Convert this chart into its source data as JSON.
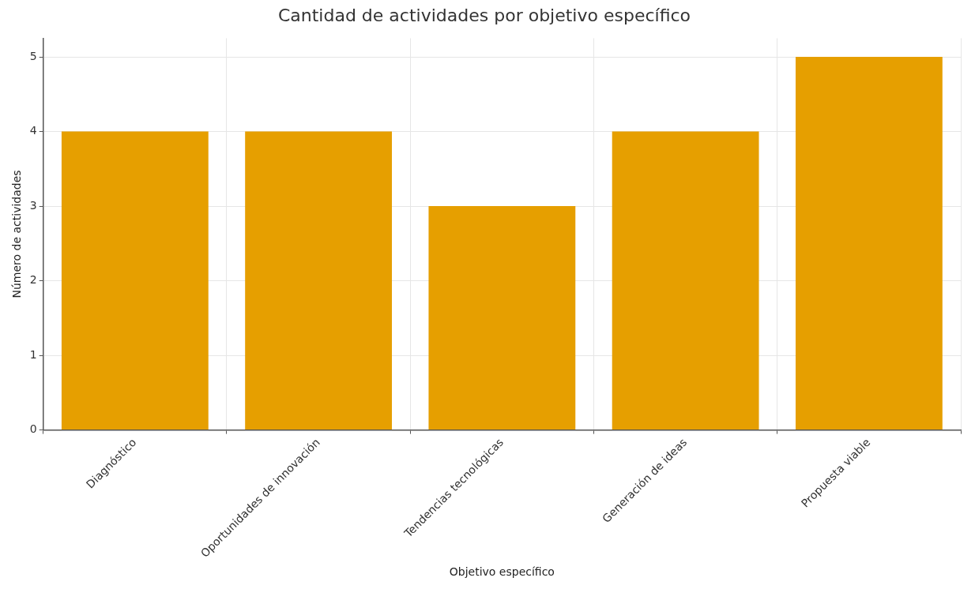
{
  "chart_data": {
    "type": "bar",
    "title": "Cantidad de actividades por objetivo específico",
    "xlabel": "Objetivo específico",
    "ylabel": "Número de actividades",
    "categories": [
      "Diagnóstico",
      "Oportunidades de innovación",
      "Tendencias tecnológicas",
      "Generación de ideas",
      "Propuesta viable"
    ],
    "values": [
      4,
      4,
      3,
      4,
      5
    ],
    "color": "#e69f00",
    "ylim": [
      0,
      5.25
    ],
    "yticks": [
      0,
      1,
      2,
      3,
      4,
      5
    ],
    "grid": true
  }
}
